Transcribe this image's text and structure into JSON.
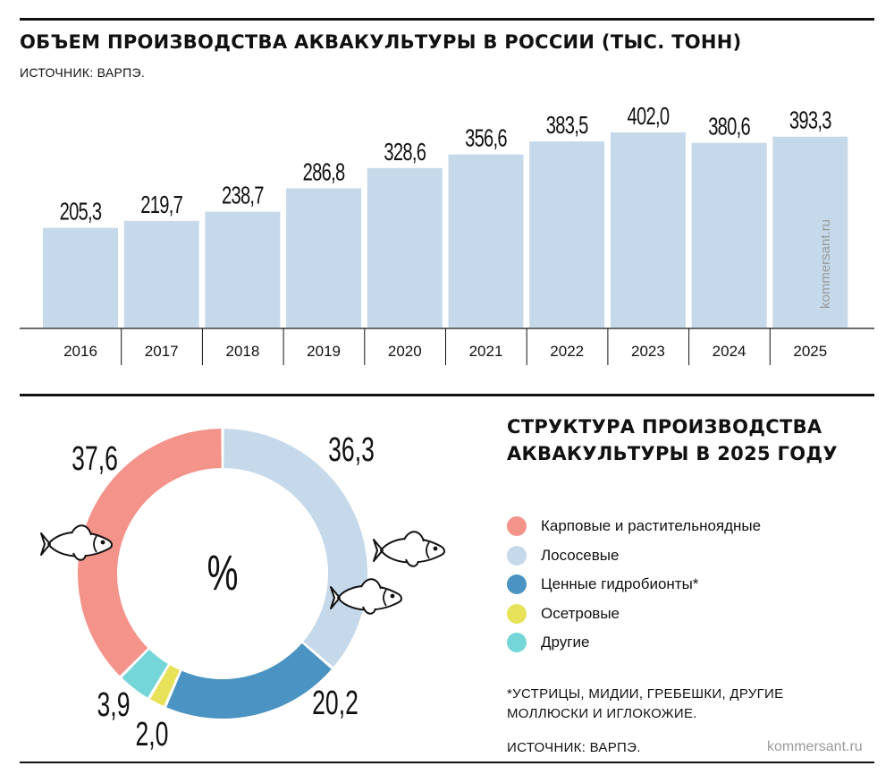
{
  "chart_data": [
    {
      "type": "bar",
      "title": "ОБЪЕМ ПРОИЗВОДСТВА АКВАКУЛЬТУРЫ В РОССИИ (ТЫС. ТОНН)",
      "source": "ИСТОЧНИК: ВАРПЭ.",
      "categories": [
        "2016",
        "2017",
        "2018",
        "2019",
        "2020",
        "2021",
        "2022",
        "2023",
        "2024",
        "2025"
      ],
      "values": [
        205.3,
        219.7,
        238.7,
        286.8,
        328.6,
        356.6,
        383.5,
        402.0,
        380.6,
        393.3
      ],
      "value_labels": [
        "205,3",
        "219,7",
        "238,7",
        "286,8",
        "328,6",
        "356,6",
        "383,5",
        "402,0",
        "380,6",
        "393,3"
      ],
      "bar_color": "#c5d9ea",
      "ylim": [
        0,
        402
      ],
      "grid": false
    },
    {
      "type": "pie",
      "title": "СТРУКТУРА ПРОИЗВОДСТВА АКВАКУЛЬТУРЫ В 2025 ГОДУ",
      "center_label": "%",
      "slices": [
        {
          "name": "Лососевые",
          "value": 36.3,
          "label": "36,3",
          "color": "#c5d9ea"
        },
        {
          "name": "Ценные гидробионты*",
          "value": 20.2,
          "label": "20,2",
          "color": "#4a93c2"
        },
        {
          "name": "Осетровые",
          "value": 2.0,
          "label": "2,0",
          "color": "#e7e25a"
        },
        {
          "name": "Другие",
          "value": 3.9,
          "label": "3,9",
          "color": "#74d6d8"
        },
        {
          "name": "Карповые и растительноядные",
          "value": 37.6,
          "label": "37,6",
          "color": "#f4938a"
        }
      ],
      "legend_order": [
        "Карповые и растительноядные",
        "Лососевые",
        "Ценные гидробионты*",
        "Осетровые",
        "Другие"
      ],
      "footnote_line1": "*УСТРИЦЫ, МИДИИ, ГРЕБЕШКИ, ДРУГИЕ",
      "footnote_line2": "МОЛЛЮСКИ И ИГЛОКОЖИЕ.",
      "source": "ИСТОЧНИК: ВАРПЭ."
    }
  ],
  "watermark": "kommersant.ru",
  "icons": [
    "fish-icon"
  ]
}
